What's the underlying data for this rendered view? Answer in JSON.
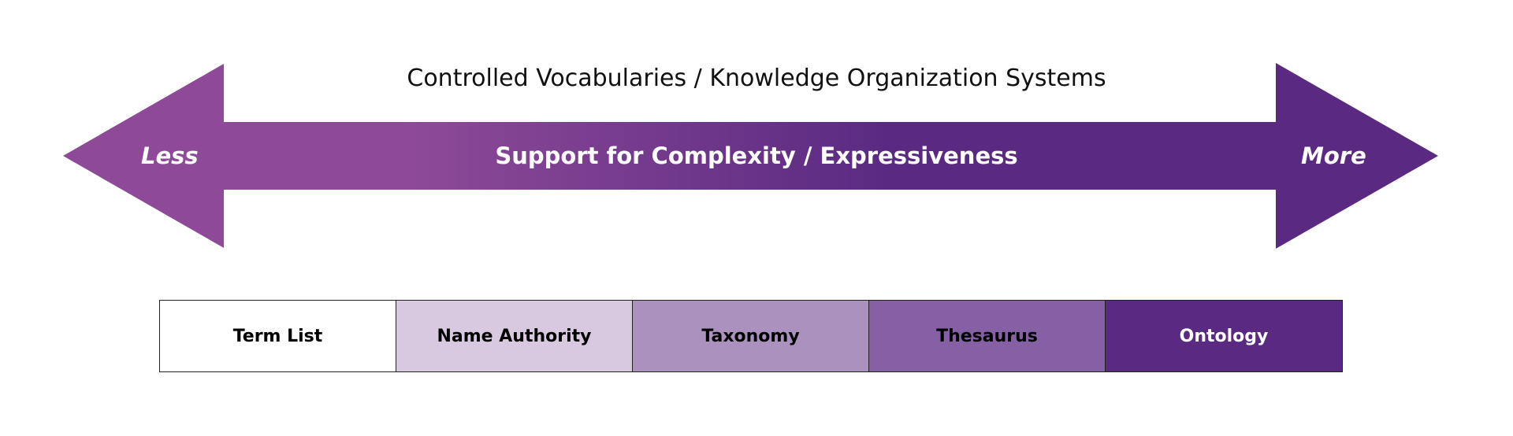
{
  "title": "Controlled Vocabularies / Knowledge Organization Systems",
  "arrow": {
    "left_label": "Less",
    "center_label": "Support for Complexity / Expressiveness",
    "right_label": "More",
    "colors": {
      "start": "#8e4a98",
      "end": "#5a2a82"
    }
  },
  "scale": [
    {
      "label": "Term List",
      "bg": "#ffffff",
      "fg": "#000000"
    },
    {
      "label": "Name Authority",
      "bg": "#d8c9e0",
      "fg": "#000000"
    },
    {
      "label": "Taxonomy",
      "bg": "#ab92be",
      "fg": "#000000"
    },
    {
      "label": "Thesaurus",
      "bg": "#8560a4",
      "fg": "#000000"
    },
    {
      "label": "Ontology",
      "bg": "#5a2a82",
      "fg": "#ffffff"
    }
  ]
}
